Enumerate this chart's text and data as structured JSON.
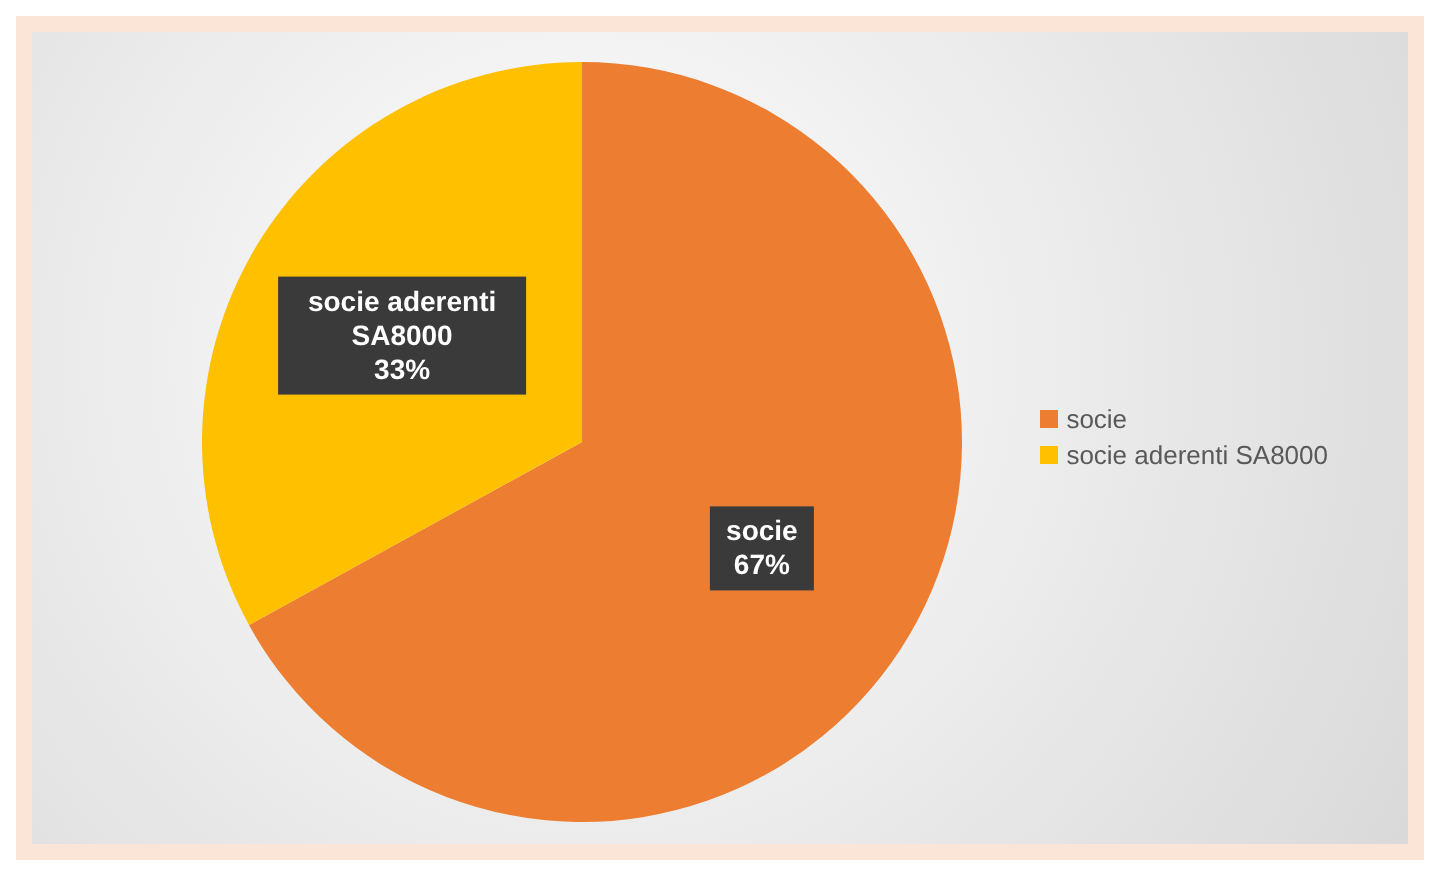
{
  "chart_data": {
    "type": "pie",
    "categories": [
      "socie",
      "socie aderenti SA8000"
    ],
    "values": [
      67,
      33
    ],
    "colors": [
      "#ed7d31",
      "#ffc000"
    ],
    "value_labels": [
      "67%",
      "33%"
    ],
    "legend": "right"
  }
}
